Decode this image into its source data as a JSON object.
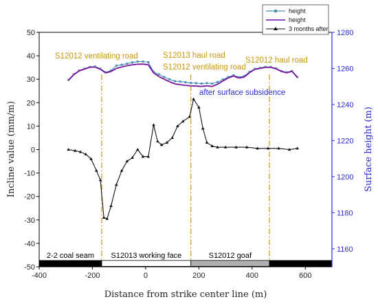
{
  "chart_data": {
    "type": "line",
    "xlabel": "Distance from strike center line (m)",
    "ylabel": "Incline value (mm/m)",
    "y2label": "Surface height (m)",
    "xlim": [
      -400,
      700
    ],
    "ylim": [
      -50,
      50
    ],
    "y2lim": [
      1150,
      1280
    ],
    "xticks": [
      "-400",
      "-200",
      "0",
      "200",
      "400",
      "600"
    ],
    "xtick_values": [
      -400,
      -200,
      0,
      200,
      400,
      600
    ],
    "yticks": [
      "-50",
      "-40",
      "-30",
      "-20",
      "-10",
      "0",
      "10",
      "20",
      "30",
      "40",
      "50"
    ],
    "ytick_values": [
      -50,
      -40,
      -30,
      -20,
      -10,
      0,
      10,
      20,
      30,
      40,
      50
    ],
    "y2ticks": [
      "1160",
      "1180",
      "1200",
      "1220",
      "1240",
      "1260",
      "1280"
    ],
    "y2tick_values": [
      1160,
      1180,
      1200,
      1220,
      1240,
      1260,
      1280
    ],
    "legend": {
      "position": "top-right",
      "entries": [
        {
          "label": "height",
          "color": "#4a8fb5",
          "marker": "square"
        },
        {
          "label": "height",
          "color": "#6a0dad",
          "marker": "none"
        },
        {
          "label": "3 months after",
          "color": "#111111",
          "marker": "triangle"
        }
      ]
    },
    "series": [
      {
        "name": "height",
        "axis": "right",
        "color": "#4a8fb5",
        "x": [
          -290,
          -270,
          -250,
          -230,
          -210,
          -190,
          -170,
          -150,
          -130,
          -110,
          -90,
          -70,
          -50,
          -30,
          -10,
          10,
          30,
          50,
          70,
          90,
          110,
          130,
          150,
          170,
          190,
          210,
          230,
          250,
          270,
          290,
          310,
          330,
          350,
          370,
          390,
          410,
          430,
          450,
          470,
          490,
          510,
          530,
          550,
          570
        ],
        "y": [
          1253.6,
          1256.7,
          1258.8,
          1259.8,
          1260.8,
          1261.0,
          1259.8,
          1257.8,
          1258.8,
          1261.5,
          1262.0,
          1262.6,
          1263.3,
          1263.8,
          1263.8,
          1263.4,
          1258.0,
          1256.7,
          1255.2,
          1253.9,
          1252.9,
          1252.7,
          1252.3,
          1251.9,
          1251.8,
          1251.6,
          1251.8,
          1251.6,
          1252.4,
          1253.8,
          1255.2,
          1256.2,
          1255.1,
          1255.7,
          1258.0,
          1259.7,
          1260.3,
          1260.8,
          1260.8,
          1260.0,
          1258.5,
          1257.8,
          1258.5,
          1255.2
        ]
      },
      {
        "name": "height",
        "axis": "right",
        "color": "#6a0dad",
        "x": [
          -290,
          -270,
          -250,
          -230,
          -210,
          -190,
          -170,
          -150,
          -130,
          -110,
          -90,
          -70,
          -50,
          -30,
          -10,
          10,
          30,
          50,
          70,
          90,
          110,
          130,
          150,
          170,
          190,
          210,
          230,
          250,
          270,
          290,
          310,
          330,
          350,
          370,
          390,
          410,
          430,
          450,
          470,
          490,
          510,
          530,
          550,
          570
        ],
        "y": [
          1253.4,
          1256.5,
          1258.6,
          1259.6,
          1260.6,
          1260.8,
          1259.5,
          1257.5,
          1258.3,
          1260.0,
          1260.8,
          1261.5,
          1262.0,
          1262.3,
          1262.4,
          1262.0,
          1257.5,
          1255.5,
          1254.0,
          1252.6,
          1251.4,
          1251.0,
          1250.6,
          1250.3,
          1250.2,
          1250.0,
          1250.3,
          1250.0,
          1251.2,
          1253.0,
          1254.7,
          1255.8,
          1254.7,
          1255.2,
          1257.6,
          1259.5,
          1260.0,
          1260.6,
          1260.6,
          1259.8,
          1258.3,
          1257.6,
          1258.4,
          1255.0
        ]
      },
      {
        "name": "3 months after",
        "axis": "left",
        "color": "#111111",
        "x": [
          -290,
          -265,
          -245,
          -225,
          -205,
          -185,
          -170,
          -157,
          -145,
          -130,
          -110,
          -90,
          -70,
          -50,
          -30,
          -10,
          10,
          30,
          45,
          60,
          80,
          100,
          120,
          140,
          165,
          180,
          200,
          215,
          230,
          250,
          270,
          300,
          340,
          380,
          420,
          460,
          500,
          540,
          570
        ],
        "y": [
          0.0,
          -0.5,
          -1.0,
          -2.0,
          -4.0,
          -9.0,
          -13.0,
          -29.0,
          -29.5,
          -24.0,
          -15.0,
          -9.0,
          -5.0,
          -3.5,
          0.0,
          -3.0,
          -3.0,
          10.5,
          3.5,
          2.0,
          3.0,
          5.0,
          10.0,
          12.0,
          14.0,
          21.5,
          18.0,
          9.0,
          3.0,
          1.5,
          1.0,
          1.0,
          1.0,
          1.0,
          0.5,
          0.5,
          0.5,
          0.0,
          0.5
        ]
      }
    ],
    "vertical_lines": [
      -165,
      170,
      465
    ],
    "annotations": [
      {
        "text": "S12012 ventilating road",
        "color": "#c8960a"
      },
      {
        "text": "S12013 haul road",
        "color": "#c8960a"
      },
      {
        "text": "S12012 ventilating road",
        "color": "#c8960a"
      },
      {
        "text": "S12012 haul road",
        "color": "#c8960a"
      },
      {
        "text": "after surface subsidence",
        "color": "#2a2ad0"
      }
    ],
    "bottom_bar": [
      {
        "label": "2-2 coal seam",
        "x_from": -400,
        "x_to": -165,
        "fill": "#000000",
        "text_color": "#ffffff"
      },
      {
        "label": "S12013 working face",
        "x_from": -165,
        "x_to": 170,
        "fill": "#ffffff",
        "text_color": "#000000"
      },
      {
        "label": "S12012 goaf",
        "x_from": 170,
        "x_to": 465,
        "fill": "#b0b0b0",
        "text_color": "#000000"
      },
      {
        "label": "",
        "x_from": 465,
        "x_to": 700,
        "fill": "#000000",
        "text_color": "#ffffff"
      }
    ],
    "grid": false
  }
}
